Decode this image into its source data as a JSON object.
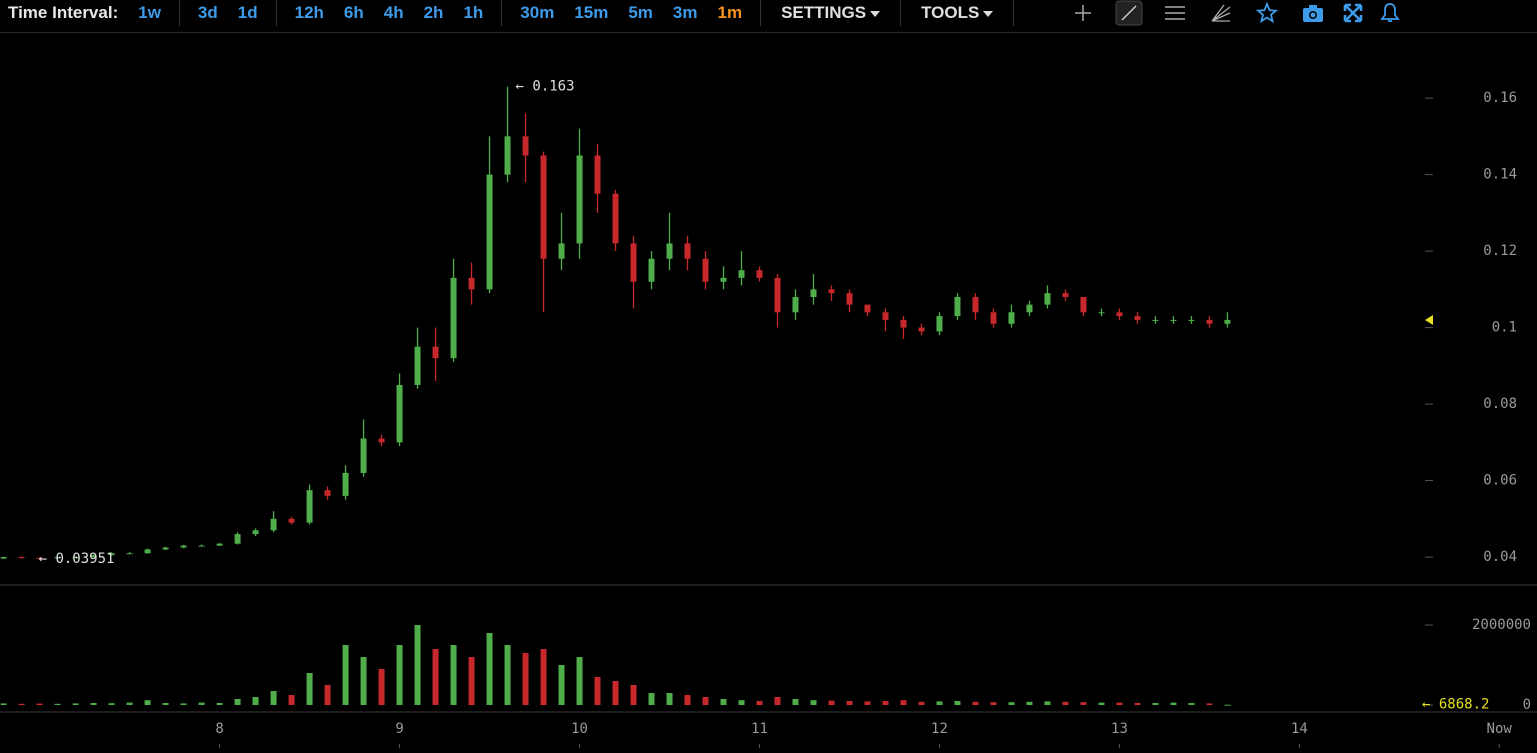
{
  "toolbar": {
    "label": "Time Interval:",
    "interval_groups": [
      [
        {
          "label": "1w"
        }
      ],
      [
        {
          "label": "3d"
        },
        {
          "label": "1d"
        }
      ],
      [
        {
          "label": "12h"
        },
        {
          "label": "6h"
        },
        {
          "label": "4h"
        },
        {
          "label": "2h"
        },
        {
          "label": "1h"
        }
      ],
      [
        {
          "label": "30m"
        },
        {
          "label": "15m"
        },
        {
          "label": "5m"
        },
        {
          "label": "3m"
        },
        {
          "label": "1m",
          "active": true
        }
      ]
    ],
    "menus": [
      "SETTINGS",
      "TOOLS"
    ]
  },
  "chart_data": {
    "type": "candlestick",
    "x": [
      6.8,
      6.9,
      7.0,
      7.1,
      7.2,
      7.3,
      7.4,
      7.5,
      7.6,
      7.7,
      7.8,
      7.9,
      8.0,
      8.1,
      8.2,
      8.3,
      8.4,
      8.5,
      8.6,
      8.7,
      8.8,
      8.9,
      9.0,
      9.1,
      9.2,
      9.3,
      9.4,
      9.5,
      9.6,
      9.7,
      9.8,
      9.9,
      10.0,
      10.1,
      10.2,
      10.3,
      10.4,
      10.5,
      10.6,
      10.7,
      10.8,
      10.9,
      11.0,
      11.1,
      11.2,
      11.3,
      11.4,
      11.5,
      11.6,
      11.7,
      11.8,
      11.9,
      12.0,
      12.1,
      12.2,
      12.3,
      12.4,
      12.5,
      12.6,
      12.7,
      12.8,
      12.9,
      13.0,
      13.1,
      13.2,
      13.3,
      13.4,
      13.5,
      13.6
    ],
    "open": [
      0.0396,
      0.04,
      0.0398,
      0.0397,
      0.04,
      0.04,
      0.0405,
      0.041,
      0.041,
      0.042,
      0.0425,
      0.043,
      0.043,
      0.0435,
      0.046,
      0.047,
      0.05,
      0.049,
      0.0575,
      0.056,
      0.062,
      0.071,
      0.07,
      0.085,
      0.095,
      0.092,
      0.113,
      0.11,
      0.14,
      0.15,
      0.145,
      0.118,
      0.122,
      0.145,
      0.135,
      0.122,
      0.112,
      0.118,
      0.122,
      0.118,
      0.112,
      0.113,
      0.115,
      0.113,
      0.104,
      0.108,
      0.11,
      0.109,
      0.106,
      0.104,
      0.102,
      0.1,
      0.099,
      0.103,
      0.108,
      0.104,
      0.101,
      0.104,
      0.106,
      0.109,
      0.108,
      0.104,
      0.104,
      0.103,
      0.102,
      0.102,
      0.102,
      0.102,
      0.101
    ],
    "high": [
      0.0401,
      0.0402,
      0.0399,
      0.0401,
      0.0402,
      0.0407,
      0.0412,
      0.0413,
      0.0422,
      0.0427,
      0.0432,
      0.0433,
      0.0437,
      0.0465,
      0.0475,
      0.052,
      0.0505,
      0.059,
      0.0585,
      0.064,
      0.076,
      0.072,
      0.088,
      0.1,
      0.1,
      0.118,
      0.117,
      0.15,
      0.163,
      0.156,
      0.146,
      0.13,
      0.152,
      0.148,
      0.136,
      0.124,
      0.12,
      0.13,
      0.124,
      0.12,
      0.116,
      0.12,
      0.116,
      0.114,
      0.11,
      0.114,
      0.111,
      0.11,
      0.106,
      0.105,
      0.103,
      0.101,
      0.104,
      0.109,
      0.109,
      0.105,
      0.106,
      0.107,
      0.111,
      0.11,
      0.108,
      0.105,
      0.105,
      0.104,
      0.103,
      0.103,
      0.103,
      0.103,
      0.104
    ],
    "low": [
      0.03951,
      0.0396,
      0.0396,
      0.0396,
      0.0398,
      0.0399,
      0.0404,
      0.0408,
      0.0409,
      0.0418,
      0.0423,
      0.0428,
      0.0429,
      0.0433,
      0.0455,
      0.0465,
      0.0485,
      0.0485,
      0.055,
      0.055,
      0.061,
      0.069,
      0.069,
      0.084,
      0.086,
      0.091,
      0.106,
      0.109,
      0.138,
      0.138,
      0.104,
      0.115,
      0.118,
      0.13,
      0.12,
      0.105,
      0.11,
      0.115,
      0.115,
      0.11,
      0.11,
      0.111,
      0.112,
      0.1,
      0.102,
      0.106,
      0.107,
      0.104,
      0.103,
      0.099,
      0.097,
      0.098,
      0.098,
      0.102,
      0.102,
      0.1,
      0.1,
      0.103,
      0.105,
      0.107,
      0.103,
      0.103,
      0.102,
      0.101,
      0.101,
      0.101,
      0.101,
      0.1,
      0.1
    ],
    "close": [
      0.04,
      0.0398,
      0.0397,
      0.04,
      0.04,
      0.0405,
      0.041,
      0.041,
      0.042,
      0.0425,
      0.043,
      0.043,
      0.0435,
      0.046,
      0.047,
      0.05,
      0.049,
      0.0575,
      0.056,
      0.062,
      0.071,
      0.07,
      0.085,
      0.095,
      0.092,
      0.113,
      0.11,
      0.14,
      0.15,
      0.145,
      0.118,
      0.122,
      0.145,
      0.135,
      0.122,
      0.112,
      0.118,
      0.122,
      0.118,
      0.112,
      0.113,
      0.115,
      0.113,
      0.104,
      0.108,
      0.11,
      0.109,
      0.106,
      0.104,
      0.102,
      0.1,
      0.099,
      0.103,
      0.108,
      0.104,
      0.101,
      0.104,
      0.106,
      0.109,
      0.108,
      0.104,
      0.104,
      0.103,
      0.102,
      0.102,
      0.102,
      0.102,
      0.101,
      0.102
    ],
    "volume": [
      40000,
      30000,
      35000,
      30000,
      40000,
      50000,
      45000,
      60000,
      120000,
      50000,
      40000,
      60000,
      50000,
      150000,
      200000,
      350000,
      250000,
      800000,
      500000,
      1500000,
      1200000,
      900000,
      1500000,
      2000000,
      1400000,
      1500000,
      1200000,
      1800000,
      1500000,
      1300000,
      1400000,
      1000000,
      1200000,
      700000,
      600000,
      500000,
      300000,
      300000,
      250000,
      200000,
      150000,
      120000,
      100000,
      200000,
      150000,
      120000,
      110000,
      100000,
      90000,
      100000,
      120000,
      80000,
      90000,
      100000,
      80000,
      70000,
      70000,
      80000,
      90000,
      80000,
      70000,
      60000,
      60000,
      50000,
      50000,
      60000,
      50000,
      40000,
      6868.2
    ],
    "up_color": "#4fae4a",
    "down_color": "#c6282b",
    "last_price_color": "#e8e020",
    "xlim": [
      6.78,
      15.32
    ],
    "xticks": [
      8,
      9,
      10,
      11,
      12,
      13,
      14,
      {
        "value": 15.11,
        "label": "Now"
      }
    ],
    "ylim": [
      0.0327,
      0.1765
    ],
    "yticks": [
      0.04,
      0.06,
      0.08,
      0.1,
      0.12,
      0.14,
      0.16
    ],
    "volume_ylim": [
      -175000,
      2950000
    ],
    "volume_yticks": [
      0,
      2000000
    ],
    "annotations": [
      {
        "text": "← 0.163",
        "value": 0.163,
        "x": 9.6
      },
      {
        "text": "← 0.03951",
        "value": 0.03951,
        "x": 6.95
      },
      {
        "text": "← 6868.2",
        "value": 6868.2,
        "axis": "volume",
        "color": "#e8e020"
      }
    ]
  }
}
